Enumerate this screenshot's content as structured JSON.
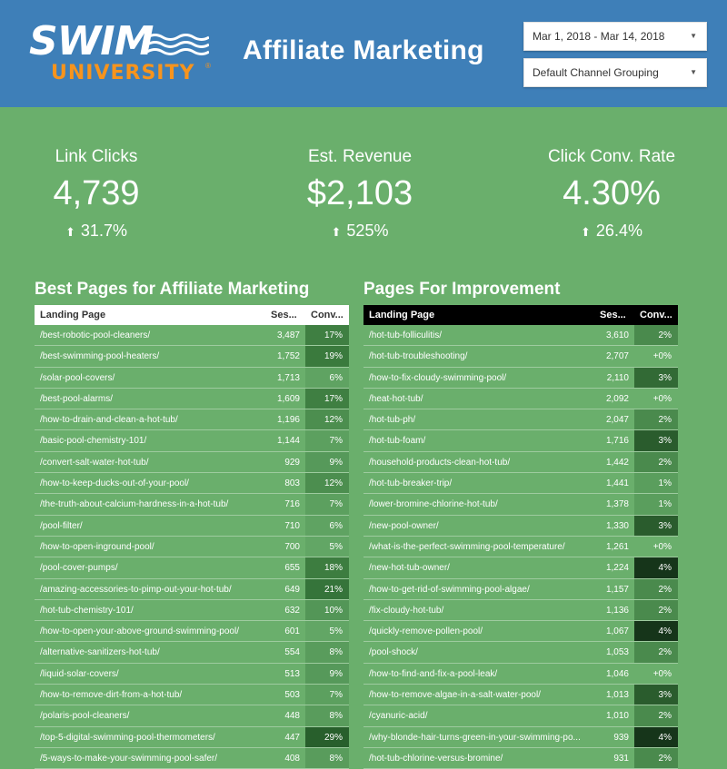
{
  "header": {
    "logo": {
      "word1": "SWIM",
      "word2": "UNIVERSITY",
      "mark": "®"
    },
    "title": "Affiliate Marketing",
    "date_range": "Mar 1, 2018 - Mar 14, 2018",
    "channel": "Default Channel Grouping",
    "caret_icon": "▼",
    "colors": {
      "header_bg": "#3e7fb8",
      "page_bg": "#6aaf6c",
      "logo_orange": "#f7941d"
    }
  },
  "kpis": [
    {
      "label": "Link Clicks",
      "value": "4,739",
      "delta": "31.7%",
      "arrow": "⬆"
    },
    {
      "label": "Est. Revenue",
      "value": "$2,103",
      "delta": "525%",
      "arrow": "⬆"
    },
    {
      "label": "Click Conv. Rate",
      "value": "4.30%",
      "delta": "26.4%",
      "arrow": "⬆"
    }
  ],
  "best_pages": {
    "title": "Best Pages for Affiliate Marketing",
    "columns": [
      "Landing Page",
      "Ses...",
      "Conv..."
    ],
    "rows": [
      {
        "page": "/best-robotic-pool-cleaners/",
        "sessions": "3,487",
        "conv": "17%",
        "shade": "#3f7f42"
      },
      {
        "page": "/best-swimming-pool-heaters/",
        "sessions": "1,752",
        "conv": "19%",
        "shade": "#3a7a3d"
      },
      {
        "page": "/solar-pool-covers/",
        "sessions": "1,713",
        "conv": "6%",
        "shade": "#5fa362"
      },
      {
        "page": "/best-pool-alarms/",
        "sessions": "1,609",
        "conv": "17%",
        "shade": "#3f7f42"
      },
      {
        "page": "/how-to-drain-and-clean-a-hot-tub/",
        "sessions": "1,196",
        "conv": "12%",
        "shade": "#4c8e4f"
      },
      {
        "page": "/basic-pool-chemistry-101/",
        "sessions": "1,144",
        "conv": "7%",
        "shade": "#5ca05f"
      },
      {
        "page": "/convert-salt-water-hot-tub/",
        "sessions": "929",
        "conv": "9%",
        "shade": "#56995a"
      },
      {
        "page": "/how-to-keep-ducks-out-of-your-pool/",
        "sessions": "803",
        "conv": "12%",
        "shade": "#4c8e4f"
      },
      {
        "page": "/the-truth-about-calcium-hardness-in-a-hot-tub/",
        "sessions": "716",
        "conv": "7%",
        "shade": "#5ca05f"
      },
      {
        "page": "/pool-filter/",
        "sessions": "710",
        "conv": "6%",
        "shade": "#5fa362"
      },
      {
        "page": "/how-to-open-inground-pool/",
        "sessions": "700",
        "conv": "5%",
        "shade": "#62a665"
      },
      {
        "page": "/pool-cover-pumps/",
        "sessions": "655",
        "conv": "18%",
        "shade": "#3d7d40"
      },
      {
        "page": "/amazing-accessories-to-pimp-out-your-hot-tub/",
        "sessions": "649",
        "conv": "21%",
        "shade": "#35743a"
      },
      {
        "page": "/hot-tub-chemistry-101/",
        "sessions": "632",
        "conv": "10%",
        "shade": "#539657"
      },
      {
        "page": "/how-to-open-your-above-ground-swimming-pool/",
        "sessions": "601",
        "conv": "5%",
        "shade": "#62a665"
      },
      {
        "page": "/alternative-sanitizers-hot-tub/",
        "sessions": "554",
        "conv": "8%",
        "shade": "#599c5c"
      },
      {
        "page": "/liquid-solar-covers/",
        "sessions": "513",
        "conv": "9%",
        "shade": "#56995a"
      },
      {
        "page": "/how-to-remove-dirt-from-a-hot-tub/",
        "sessions": "503",
        "conv": "7%",
        "shade": "#5ca05f"
      },
      {
        "page": "/polaris-pool-cleaners/",
        "sessions": "448",
        "conv": "8%",
        "shade": "#599c5c"
      },
      {
        "page": "/top-5-digital-swimming-pool-thermometers/",
        "sessions": "447",
        "conv": "29%",
        "shade": "#285f2c"
      },
      {
        "page": "/5-ways-to-make-your-swimming-pool-safer/",
        "sessions": "408",
        "conv": "8%",
        "shade": "#599c5c"
      }
    ]
  },
  "improve_pages": {
    "title": "Pages For Improvement",
    "columns": [
      "Landing Page",
      "Ses...",
      "Conv..."
    ],
    "rows": [
      {
        "page": "/hot-tub-folliculitis/",
        "sessions": "3,610",
        "conv": "2%",
        "shade": "#4a8a4d"
      },
      {
        "page": "/hot-tub-troubleshooting/",
        "sessions": "2,707",
        "conv": "+0%",
        "shade": "#6aaf6c"
      },
      {
        "page": "/how-to-fix-cloudy-swimming-pool/",
        "sessions": "2,110",
        "conv": "3%",
        "shade": "#326a35"
      },
      {
        "page": "/heat-hot-tub/",
        "sessions": "2,092",
        "conv": "+0%",
        "shade": "#6aaf6c"
      },
      {
        "page": "/hot-tub-ph/",
        "sessions": "2,047",
        "conv": "2%",
        "shade": "#4a8a4d"
      },
      {
        "page": "/hot-tub-foam/",
        "sessions": "1,716",
        "conv": "3%",
        "shade": "#2a5c2d"
      },
      {
        "page": "/household-products-clean-hot-tub/",
        "sessions": "1,442",
        "conv": "2%",
        "shade": "#4a8a4d"
      },
      {
        "page": "/hot-tub-breaker-trip/",
        "sessions": "1,441",
        "conv": "1%",
        "shade": "#5a9e5d"
      },
      {
        "page": "/lower-bromine-chlorine-hot-tub/",
        "sessions": "1,378",
        "conv": "1%",
        "shade": "#5a9e5d"
      },
      {
        "page": "/new-pool-owner/",
        "sessions": "1,330",
        "conv": "3%",
        "shade": "#2a5c2d"
      },
      {
        "page": "/what-is-the-perfect-swimming-pool-temperature/",
        "sessions": "1,261",
        "conv": "+0%",
        "shade": "#6aaf6c"
      },
      {
        "page": "/new-hot-tub-owner/",
        "sessions": "1,224",
        "conv": "4%",
        "shade": "#16351a"
      },
      {
        "page": "/how-to-get-rid-of-swimming-pool-algae/",
        "sessions": "1,157",
        "conv": "2%",
        "shade": "#4a8a4d"
      },
      {
        "page": "/fix-cloudy-hot-tub/",
        "sessions": "1,136",
        "conv": "2%",
        "shade": "#4a8a4d"
      },
      {
        "page": "/quickly-remove-pollen-pool/",
        "sessions": "1,067",
        "conv": "4%",
        "shade": "#16351a"
      },
      {
        "page": "/pool-shock/",
        "sessions": "1,053",
        "conv": "2%",
        "shade": "#4a8a4d"
      },
      {
        "page": "/how-to-find-and-fix-a-pool-leak/",
        "sessions": "1,046",
        "conv": "+0%",
        "shade": "#6aaf6c"
      },
      {
        "page": "/how-to-remove-algae-in-a-salt-water-pool/",
        "sessions": "1,013",
        "conv": "3%",
        "shade": "#2a5c2d"
      },
      {
        "page": "/cyanuric-acid/",
        "sessions": "1,010",
        "conv": "2%",
        "shade": "#4a8a4d"
      },
      {
        "page": "/why-blonde-hair-turns-green-in-your-swimming-po...",
        "sessions": "939",
        "conv": "4%",
        "shade": "#16351a"
      },
      {
        "page": "/hot-tub-chlorine-versus-bromine/",
        "sessions": "931",
        "conv": "2%",
        "shade": "#4a8a4d"
      }
    ]
  }
}
